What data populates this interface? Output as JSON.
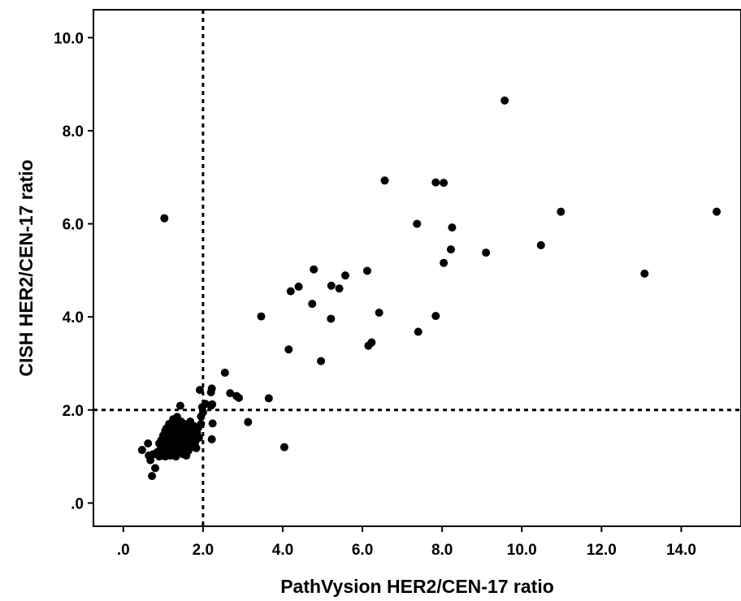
{
  "chart_data": {
    "type": "scatter",
    "xlabel": "PathVysion HER2/CEN-17 ratio",
    "ylabel": "CISH HER2/CEN-17 ratio",
    "xlim": [
      -0.75,
      15.5
    ],
    "ylim": [
      -0.5,
      10.6
    ],
    "x_ticks": [
      0,
      2,
      4,
      6,
      8,
      10,
      12,
      14
    ],
    "x_tick_labels": [
      ".0",
      "2.0",
      "4.0",
      "6.0",
      "8.0",
      "10.0",
      "12.0",
      "14.0"
    ],
    "y_ticks": [
      0,
      2,
      4,
      6,
      8,
      10
    ],
    "y_tick_labels": [
      ".0",
      "2.0",
      "4.0",
      "6.0",
      "8.0",
      "10.0"
    ],
    "reference_lines": [
      {
        "orientation": "vertical",
        "value": 2.0,
        "style": "dotted"
      },
      {
        "orientation": "horizontal",
        "value": 2.0,
        "style": "dotted"
      }
    ],
    "grid": false,
    "points": [
      [
        9.57,
        8.65
      ],
      [
        6.56,
        6.93
      ],
      [
        7.84,
        6.89
      ],
      [
        8.04,
        6.88
      ],
      [
        1.03,
        6.12
      ],
      [
        10.98,
        6.26
      ],
      [
        14.89,
        6.26
      ],
      [
        7.37,
        6.0
      ],
      [
        8.25,
        5.92
      ],
      [
        10.48,
        5.54
      ],
      [
        8.22,
        5.45
      ],
      [
        9.1,
        5.38
      ],
      [
        8.04,
        5.16
      ],
      [
        4.78,
        5.02
      ],
      [
        6.12,
        4.99
      ],
      [
        13.08,
        4.93
      ],
      [
        5.57,
        4.89
      ],
      [
        5.22,
        4.67
      ],
      [
        4.4,
        4.65
      ],
      [
        5.42,
        4.61
      ],
      [
        4.2,
        4.55
      ],
      [
        4.74,
        4.28
      ],
      [
        6.42,
        4.09
      ],
      [
        3.46,
        4.01
      ],
      [
        7.84,
        4.02
      ],
      [
        5.21,
        3.96
      ],
      [
        7.4,
        3.68
      ],
      [
        6.23,
        3.45
      ],
      [
        6.15,
        3.38
      ],
      [
        4.15,
        3.3
      ],
      [
        4.96,
        3.05
      ],
      [
        2.55,
        2.8
      ],
      [
        2.68,
        2.36
      ],
      [
        2.22,
        2.46
      ],
      [
        1.92,
        2.43
      ],
      [
        2.2,
        2.38
      ],
      [
        2.84,
        2.3
      ],
      [
        2.9,
        2.26
      ],
      [
        3.65,
        2.25
      ],
      [
        2.23,
        2.12
      ],
      [
        2.2,
        2.09
      ],
      [
        1.98,
        2.06
      ],
      [
        1.43,
        2.09
      ],
      [
        2.06,
        2.13
      ],
      [
        2.0,
        1.95
      ],
      [
        1.95,
        1.86
      ],
      [
        2.24,
        1.71
      ],
      [
        3.13,
        1.74
      ],
      [
        2.22,
        1.37
      ],
      [
        4.04,
        1.2
      ],
      [
        0.47,
        1.14
      ],
      [
        0.62,
        1.28
      ],
      [
        0.64,
        1.02
      ],
      [
        0.68,
        0.92
      ],
      [
        0.75,
        1.05
      ],
      [
        0.8,
        0.75
      ],
      [
        0.72,
        0.58
      ],
      [
        0.86,
        1.1
      ],
      [
        0.9,
        1.0
      ],
      [
        0.95,
        1.2
      ],
      [
        1.0,
        1.1
      ],
      [
        1.03,
        1.3
      ],
      [
        1.05,
        1.0
      ],
      [
        1.08,
        1.5
      ],
      [
        1.1,
        1.2
      ],
      [
        1.12,
        1.05
      ],
      [
        1.15,
        1.4
      ],
      [
        1.18,
        1.3
      ],
      [
        1.2,
        1.6
      ],
      [
        1.22,
        1.1
      ],
      [
        1.25,
        1.45
      ],
      [
        1.28,
        1.25
      ],
      [
        1.3,
        1.7
      ],
      [
        1.32,
        1.0
      ],
      [
        1.35,
        1.35
      ],
      [
        1.38,
        1.55
      ],
      [
        1.4,
        1.2
      ],
      [
        1.42,
        1.4
      ],
      [
        1.45,
        1.1
      ],
      [
        1.48,
        1.65
      ],
      [
        1.5,
        1.3
      ],
      [
        1.52,
        1.5
      ],
      [
        1.55,
        1.15
      ],
      [
        1.58,
        1.45
      ],
      [
        1.6,
        1.25
      ],
      [
        1.62,
        1.6
      ],
      [
        1.65,
        1.35
      ],
      [
        1.7,
        1.55
      ],
      [
        1.72,
        1.2
      ],
      [
        1.75,
        1.42
      ],
      [
        1.78,
        1.65
      ],
      [
        1.8,
        1.3
      ],
      [
        1.85,
        1.5
      ],
      [
        1.88,
        1.62
      ],
      [
        1.9,
        1.4
      ],
      [
        1.95,
        1.7
      ],
      [
        1.0,
        1.45
      ],
      [
        1.08,
        1.6
      ],
      [
        1.15,
        1.7
      ],
      [
        1.25,
        1.8
      ],
      [
        1.35,
        1.85
      ],
      [
        1.45,
        1.75
      ],
      [
        0.95,
        1.35
      ],
      [
        1.05,
        1.55
      ],
      [
        1.12,
        1.25
      ],
      [
        1.22,
        1.5
      ],
      [
        1.3,
        1.15
      ],
      [
        1.4,
        1.62
      ],
      [
        1.5,
        1.05
      ],
      [
        1.6,
        1.48
      ],
      [
        1.7,
        1.35
      ],
      [
        1.2,
        1.38
      ],
      [
        1.28,
        1.6
      ],
      [
        1.33,
        1.28
      ],
      [
        1.43,
        1.5
      ],
      [
        1.53,
        1.7
      ],
      [
        1.63,
        1.12
      ],
      [
        1.18,
        1.02
      ],
      [
        1.38,
        1.08
      ],
      [
        1.58,
        1.02
      ],
      [
        0.9,
        1.28
      ],
      [
        1.0,
        1.18
      ],
      [
        1.48,
        1.32
      ],
      [
        1.68,
        1.75
      ],
      [
        1.83,
        1.18
      ]
    ]
  }
}
